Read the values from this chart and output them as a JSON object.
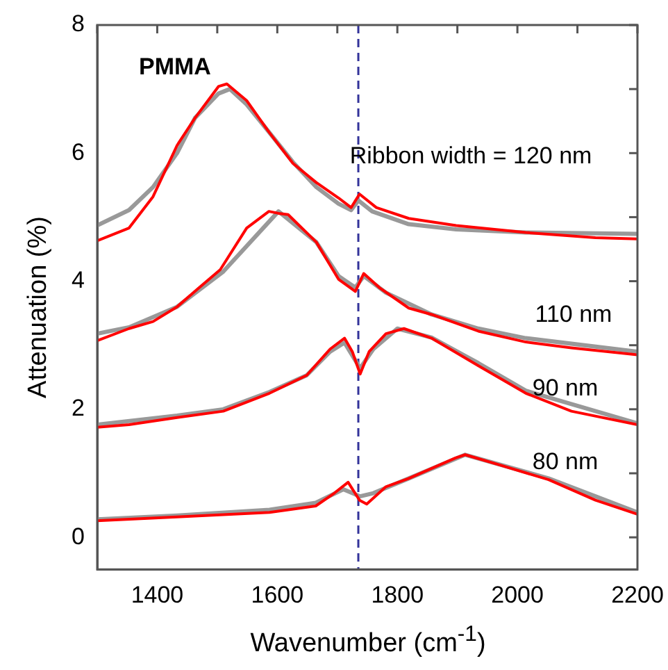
{
  "chart_data": {
    "type": "line",
    "xlabel": "Wavenumber (cm$^{-1}$)",
    "ylabel": "Attenuation (%)",
    "xlim": [
      1300,
      2200
    ],
    "ylim": [
      -0.5,
      8
    ],
    "xticks": [
      {
        "value": 1300,
        "label": null
      },
      1400,
      {
        "value": 1500,
        "label": null
      },
      1600,
      {
        "value": 1700,
        "label": null
      },
      1800,
      {
        "value": 1900,
        "label": null
      },
      2000,
      {
        "value": 2100,
        "label": null
      },
      2200
    ],
    "yticks": [
      0,
      {
        "value": 1,
        "label": null
      },
      2,
      {
        "value": 3,
        "label": null
      },
      4,
      {
        "value": 5,
        "label": null
      },
      6,
      {
        "value": 7,
        "label": null
      },
      8
    ],
    "grid": false,
    "legend": false,
    "marker": "none",
    "line_style": "solid",
    "series": [
      {
        "color": "#999999",
        "x": [
          1300,
          1353,
          1393,
          1433,
          1463,
          1502,
          1521,
          1549,
          1586,
          1626,
          1665,
          1702,
          1723,
          1735,
          1758,
          1819,
          1898,
          2014,
          2200
        ],
        "values": [
          4.87,
          5.11,
          5.47,
          6.0,
          6.55,
          6.93,
          7.0,
          6.76,
          6.33,
          5.86,
          5.47,
          5.21,
          5.11,
          5.26,
          5.09,
          4.89,
          4.81,
          4.76,
          4.74
        ]
      },
      {
        "color": "#ff0000",
        "x": [
          1300,
          1353,
          1393,
          1433,
          1463,
          1502,
          1516,
          1549,
          1586,
          1626,
          1665,
          1702,
          1723,
          1737,
          1765,
          1819,
          1898,
          2014,
          2130,
          2200
        ],
        "values": [
          4.63,
          4.83,
          5.32,
          6.12,
          6.55,
          7.04,
          7.08,
          6.82,
          6.33,
          5.84,
          5.54,
          5.3,
          5.15,
          5.36,
          5.15,
          4.98,
          4.87,
          4.76,
          4.68,
          4.66
        ]
      },
      {
        "color": "#999999",
        "x": [
          1300,
          1353,
          1433,
          1510,
          1602,
          1665,
          1702,
          1730,
          1744,
          1781,
          1857,
          1935,
          2014,
          2200
        ],
        "values": [
          3.18,
          3.28,
          3.6,
          4.15,
          5.09,
          4.61,
          4.08,
          3.9,
          4.08,
          3.82,
          3.48,
          3.26,
          3.11,
          2.9
        ]
      },
      {
        "color": "#ff0000",
        "x": [
          1300,
          1353,
          1393,
          1433,
          1470,
          1505,
          1549,
          1586,
          1602,
          1618,
          1665,
          1702,
          1730,
          1744,
          1770,
          1819,
          1857,
          1935,
          2014,
          2090,
          2200
        ],
        "values": [
          3.07,
          3.26,
          3.37,
          3.6,
          3.9,
          4.18,
          4.83,
          5.09,
          5.06,
          5.04,
          4.61,
          4.03,
          3.84,
          4.12,
          3.9,
          3.58,
          3.48,
          3.22,
          3.05,
          2.96,
          2.85
        ]
      },
      {
        "color": "#999999",
        "x": [
          1300,
          1433,
          1510,
          1587,
          1649,
          1688,
          1712,
          1738,
          1760,
          1800,
          1857,
          1935,
          2014,
          2200
        ],
        "values": [
          1.76,
          1.9,
          2.0,
          2.27,
          2.53,
          2.9,
          3.04,
          2.64,
          2.94,
          3.26,
          3.12,
          2.72,
          2.29,
          1.78
        ]
      },
      {
        "color": "#ff0000",
        "x": [
          1300,
          1353,
          1433,
          1510,
          1587,
          1649,
          1688,
          1712,
          1725,
          1738,
          1753,
          1781,
          1811,
          1857,
          1935,
          2014,
          2090,
          2200
        ],
        "values": [
          1.72,
          1.76,
          1.87,
          1.97,
          2.25,
          2.53,
          2.94,
          3.11,
          2.9,
          2.55,
          2.9,
          3.18,
          3.26,
          3.11,
          2.68,
          2.25,
          1.97,
          1.76
        ]
      },
      {
        "color": "#999999",
        "x": [
          1300,
          1433,
          1587,
          1664,
          1710,
          1738,
          1760,
          1819,
          1913,
          2052,
          2200
        ],
        "values": [
          0.28,
          0.34,
          0.43,
          0.54,
          0.75,
          0.64,
          0.69,
          0.92,
          1.29,
          0.92,
          0.39
        ]
      },
      {
        "color": "#ff0000",
        "x": [
          1300,
          1433,
          1587,
          1664,
          1695,
          1718,
          1737,
          1749,
          1781,
          1819,
          1897,
          1913,
          1974,
          2052,
          2130,
          2200
        ],
        "values": [
          0.26,
          0.32,
          0.39,
          0.49,
          0.69,
          0.86,
          0.58,
          0.52,
          0.79,
          0.92,
          1.24,
          1.29,
          1.12,
          0.9,
          0.58,
          0.36
        ]
      }
    ],
    "ref_lines": [
      {
        "axis": "x",
        "value": 1735,
        "color": "#33339a",
        "line_style": "dashed"
      }
    ],
    "annotations": [
      "PMMA",
      "Ribbon width = 120 nm",
      "110 nm",
      "90 nm",
      "80 nm"
    ]
  }
}
